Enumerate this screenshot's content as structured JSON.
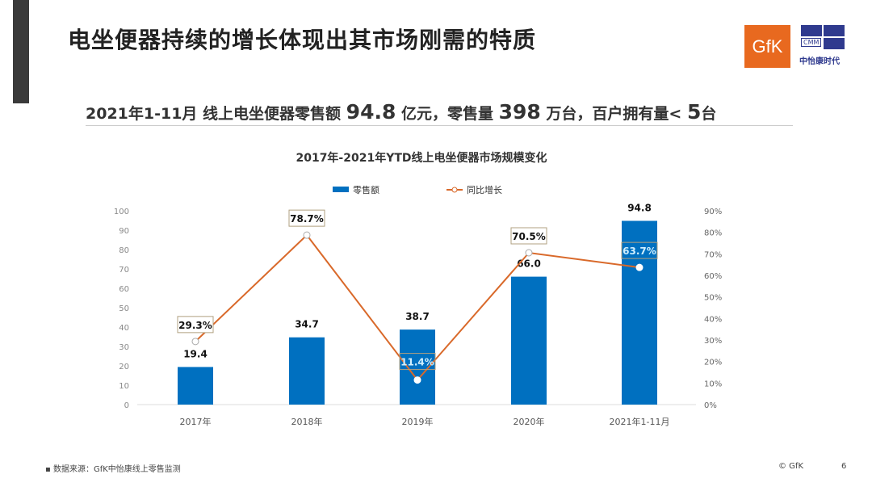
{
  "header": {
    "title": "电坐便器持续的增长体现出其市场刚需的特质"
  },
  "logos": {
    "gfk": "GfK",
    "cmm": "CMM",
    "cmm_cn": "中怡康时代"
  },
  "summary": {
    "p1": "2021年1-11月 线上电坐便器零售额 ",
    "v1": "94.8",
    "p2": " 亿元，零售量 ",
    "v2": "398",
    "p3": " 万台，百户拥有量< ",
    "v3": "5",
    "p4": "台"
  },
  "chart_data": {
    "type": "bar+line",
    "title": "2017年-2021年YTD线上电坐便器市场规模变化",
    "categories": [
      "2017年",
      "2018年",
      "2019年",
      "2020年",
      "2021年1-11月"
    ],
    "series": [
      {
        "name": "零售额",
        "type": "bar",
        "axis": "left",
        "values": [
          19.4,
          34.7,
          38.7,
          66.0,
          94.8
        ],
        "labels": [
          "19.4",
          "34.7",
          "38.7",
          "66.0",
          "94.8"
        ],
        "color": "#0070c0"
      },
      {
        "name": "同比增长",
        "type": "line",
        "axis": "right",
        "values": [
          29.3,
          78.7,
          11.4,
          70.5,
          63.7
        ],
        "labels": [
          "29.3%",
          "78.7%",
          "11.4%",
          "70.5%",
          "63.7%"
        ],
        "color": "#d9692a"
      }
    ],
    "ylim_left": [
      0,
      100
    ],
    "yticks_left": [
      "0",
      "10",
      "20",
      "30",
      "40",
      "50",
      "60",
      "70",
      "80",
      "90",
      "100"
    ],
    "ylim_right": [
      0,
      90
    ],
    "yticks_right": [
      "0%",
      "10%",
      "20%",
      "30%",
      "40%",
      "50%",
      "60%",
      "70%",
      "80%",
      "90%"
    ],
    "legend_position": "top-center"
  },
  "footer": {
    "source": "数据来源：GfK中怡康线上零售监测",
    "copyright": "© GfK",
    "page": "6"
  }
}
